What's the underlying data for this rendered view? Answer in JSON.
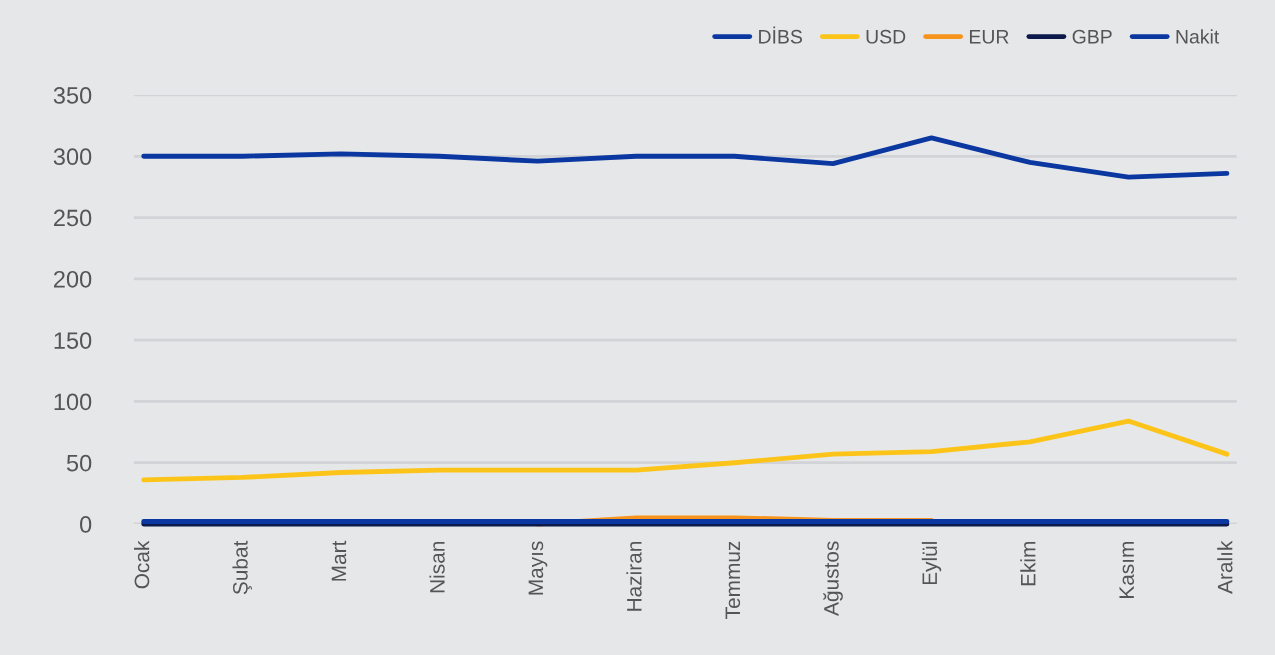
{
  "chart_data": {
    "type": "line",
    "categories": [
      "Ocak",
      "Şubat",
      "Mart",
      "Nisan",
      "Mayıs",
      "Haziran",
      "Temmuz",
      "Ağustos",
      "Eylül",
      "Ekim",
      "Kasım",
      "Aralık"
    ],
    "series": [
      {
        "name": "DİBS",
        "color": "#0a37a0",
        "values": [
          300,
          300,
          302,
          300,
          296,
          300,
          300,
          294,
          315,
          295,
          283,
          286
        ]
      },
      {
        "name": "USD",
        "color": "#fcc419",
        "values": [
          36,
          38,
          42,
          44,
          44,
          44,
          50,
          57,
          59,
          67,
          84,
          57
        ]
      },
      {
        "name": "EUR",
        "color": "#f7941d",
        "values": [
          null,
          null,
          null,
          null,
          0,
          5,
          5,
          3,
          3,
          null,
          null,
          null
        ]
      },
      {
        "name": "GBP",
        "color": "#0b1a4a",
        "values": [
          0,
          0,
          0,
          0,
          0,
          0,
          0,
          0,
          0,
          0,
          0,
          0
        ]
      },
      {
        "name": "Nakit",
        "color": "#0a37a0",
        "values": [
          2,
          2,
          2,
          2,
          2,
          2,
          2,
          2,
          2,
          2,
          2,
          2
        ]
      }
    ],
    "ylim": [
      0,
      350
    ],
    "yticks": [
      0,
      50,
      100,
      150,
      200,
      250,
      300,
      350
    ],
    "grid": "y",
    "legend": "top right",
    "marker": "none",
    "line_style": "solid"
  }
}
